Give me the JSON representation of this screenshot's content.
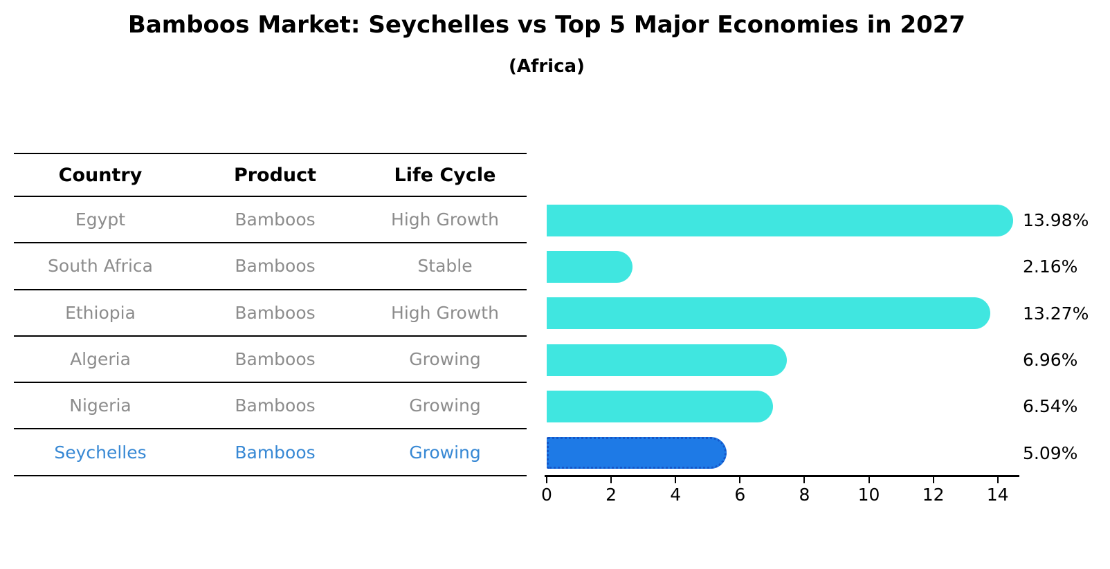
{
  "title": "Bamboos Market: Seychelles vs Top 5 Major Economies in 2027",
  "subtitle": "(Africa)",
  "table": {
    "headers": [
      "Country",
      "Product",
      "Life Cycle"
    ],
    "rows": [
      {
        "country": "Egypt",
        "product": "Bamboos",
        "life_cycle": "High Growth",
        "highlighted": false
      },
      {
        "country": "South Africa",
        "product": "Bamboos",
        "life_cycle": "Stable",
        "highlighted": false
      },
      {
        "country": "Ethiopia",
        "product": "Bamboos",
        "life_cycle": "High Growth",
        "highlighted": false
      },
      {
        "country": "Algeria",
        "product": "Bamboos",
        "life_cycle": "Growing",
        "highlighted": false
      },
      {
        "country": "Nigeria",
        "product": "Bamboos",
        "life_cycle": "Growing",
        "highlighted": false
      },
      {
        "country": "Seychelles",
        "product": "Bamboos",
        "life_cycle": "Growing",
        "highlighted": true
      }
    ]
  },
  "chart_data": {
    "type": "bar",
    "orientation": "horizontal",
    "title": "Bamboos Market: Seychelles vs Top 5 Major Economies in 2027",
    "subtitle": "(Africa)",
    "categories": [
      "Egypt",
      "South Africa",
      "Ethiopia",
      "Algeria",
      "Nigeria",
      "Seychelles"
    ],
    "values": [
      13.98,
      2.16,
      13.27,
      6.96,
      6.54,
      5.09
    ],
    "labels": [
      "13.98%",
      "2.16%",
      "13.27%",
      "6.96%",
      "6.54%",
      "5.09%"
    ],
    "unit": "%",
    "x_ticks": [
      0,
      2,
      4,
      6,
      8,
      10,
      12,
      14
    ],
    "xlim": [
      0,
      14.7
    ],
    "grid": false,
    "legend": "none",
    "highlight_index": 5,
    "bar_color": "#40e6e0",
    "highlight_color": "#1e7ae6",
    "highlight_border_color": "#1456c8",
    "value_label_color": "#000000",
    "table_text_color": "#8c8c8c",
    "highlight_text_color": "#3788d4"
  }
}
